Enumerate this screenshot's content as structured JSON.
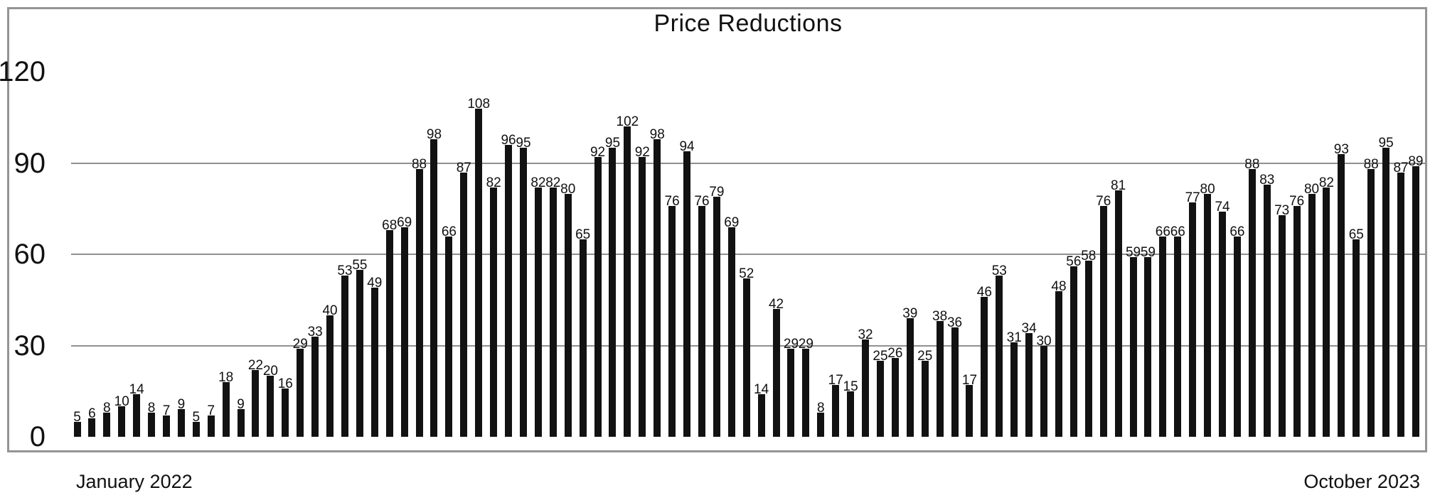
{
  "title": "Price Reductions",
  "x_axis": {
    "start_label": "January 2022",
    "end_label": "October 2023"
  },
  "colors": {
    "background": "#ffffff",
    "bar": "#121212",
    "gridline": "#909090",
    "frame": "#949494",
    "text": "#111111"
  },
  "chart_data": {
    "type": "bar",
    "title": "Price Reductions",
    "xlabel": "",
    "ylabel": "",
    "x_start": "January 2022",
    "x_end": "October 2023",
    "x_unit": "weeks",
    "ylim": [
      0,
      120
    ],
    "yticks": [
      0,
      30,
      60,
      90,
      120
    ],
    "gridlines_at": [
      30,
      60,
      90
    ],
    "grid": "horizontal solid lines drawn behind bars (appear dashed where bars cross them)",
    "legend": "none",
    "bar_labels": "value printed above each bar",
    "values": [
      5,
      6,
      8,
      10,
      14,
      8,
      7,
      9,
      5,
      7,
      18,
      9,
      22,
      20,
      16,
      29,
      33,
      40,
      53,
      55,
      49,
      68,
      69,
      88,
      98,
      66,
      87,
      108,
      82,
      96,
      95,
      82,
      82,
      80,
      65,
      92,
      95,
      102,
      92,
      98,
      76,
      94,
      76,
      79,
      69,
      52,
      14,
      42,
      29,
      29,
      8,
      17,
      15,
      32,
      25,
      26,
      39,
      25,
      38,
      36,
      17,
      46,
      53,
      31,
      34,
      30,
      48,
      56,
      58,
      76,
      81,
      59,
      59,
      66,
      66,
      77,
      80,
      74,
      66,
      88,
      83,
      73,
      76,
      80,
      82,
      93,
      65,
      88,
      95,
      87,
      89
    ]
  }
}
